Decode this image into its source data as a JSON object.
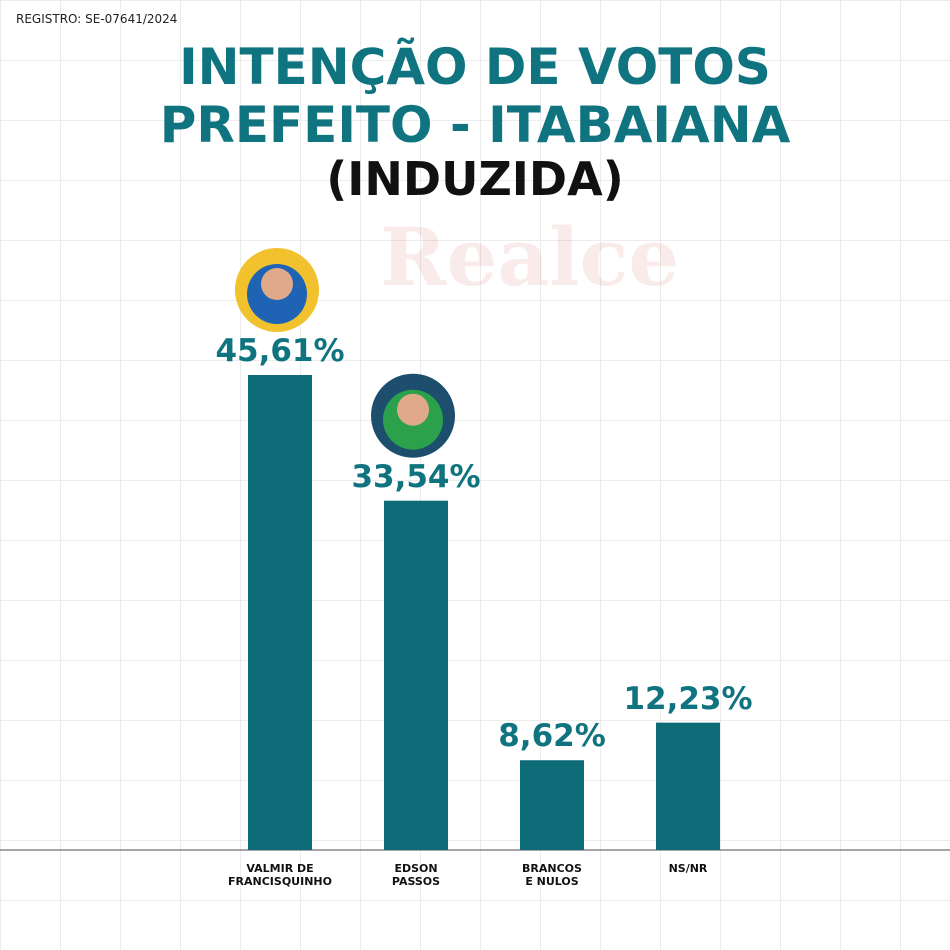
{
  "chart_data": {
    "type": "bar",
    "annotation": "REGISTRO: SE-07641/2024",
    "title": "INTENÇÃO DE VOTOS\nPREFEITO - ITABAIANA",
    "subtitle": "(INDUZIDA)",
    "watermark": "Realce",
    "categories": [
      "VALMIR DE\nFRANCISQUINHO",
      "EDSON\nPASSOS",
      "BRANCOS\nE NULOS",
      "NS/NR"
    ],
    "values": [
      45.61,
      33.54,
      8.62,
      12.23
    ],
    "value_labels": [
      "45,61%",
      "33,54%",
      "8,62%",
      "12,23%"
    ],
    "color": "#0e6b78"
  }
}
